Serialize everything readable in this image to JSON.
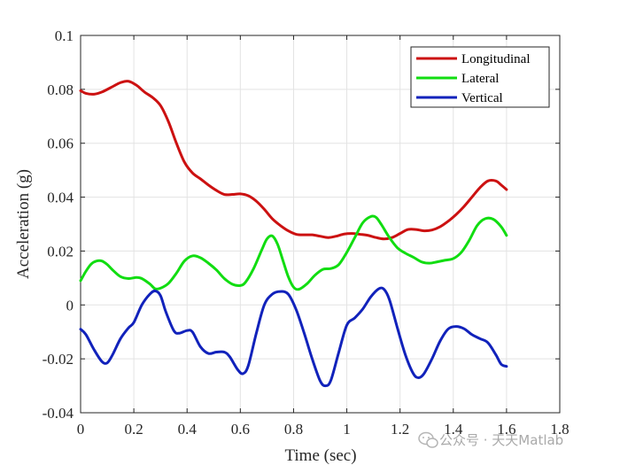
{
  "chart_data": {
    "type": "line",
    "xlabel": "Time (sec)",
    "ylabel": "Acceleration (g)",
    "xlim": [
      0,
      1.8
    ],
    "ylim": [
      -0.04,
      0.1
    ],
    "x_ticks": [
      0,
      0.2,
      0.4,
      0.6,
      0.8,
      1,
      1.2,
      1.4,
      1.6,
      1.8
    ],
    "x_tick_labels": [
      "0",
      "0.2",
      "0.4",
      "0.6",
      "0.8",
      "1",
      "1.2",
      "1.4",
      "1.6",
      "1.8"
    ],
    "y_ticks": [
      -0.04,
      -0.02,
      0,
      0.02,
      0.04,
      0.06,
      0.08,
      0.1
    ],
    "y_tick_labels": [
      "-0.04",
      "-0.02",
      "0",
      "0.02",
      "0.04",
      "0.06",
      "0.08",
      "0.1"
    ],
    "grid": true,
    "legend_position": "top-right",
    "series": [
      {
        "name": "Longitudinal",
        "color": "#cc1111",
        "points": [
          [
            0,
            0.0795
          ],
          [
            0.02,
            0.0785
          ],
          [
            0.05,
            0.0782
          ],
          [
            0.08,
            0.079
          ],
          [
            0.12,
            0.081
          ],
          [
            0.15,
            0.0825
          ],
          [
            0.18,
            0.083
          ],
          [
            0.21,
            0.0815
          ],
          [
            0.24,
            0.079
          ],
          [
            0.27,
            0.077
          ],
          [
            0.3,
            0.074
          ],
          [
            0.33,
            0.068
          ],
          [
            0.36,
            0.06
          ],
          [
            0.39,
            0.053
          ],
          [
            0.42,
            0.049
          ],
          [
            0.45,
            0.0468
          ],
          [
            0.48,
            0.0445
          ],
          [
            0.51,
            0.0425
          ],
          [
            0.54,
            0.041
          ],
          [
            0.57,
            0.041
          ],
          [
            0.6,
            0.0412
          ],
          [
            0.63,
            0.0405
          ],
          [
            0.66,
            0.0385
          ],
          [
            0.69,
            0.0355
          ],
          [
            0.72,
            0.032
          ],
          [
            0.75,
            0.0295
          ],
          [
            0.78,
            0.0275
          ],
          [
            0.81,
            0.0262
          ],
          [
            0.84,
            0.026
          ],
          [
            0.87,
            0.026
          ],
          [
            0.9,
            0.0255
          ],
          [
            0.93,
            0.025
          ],
          [
            0.96,
            0.0255
          ],
          [
            0.99,
            0.0263
          ],
          [
            1.02,
            0.0265
          ],
          [
            1.05,
            0.0262
          ],
          [
            1.08,
            0.0258
          ],
          [
            1.11,
            0.025
          ],
          [
            1.14,
            0.0245
          ],
          [
            1.17,
            0.025
          ],
          [
            1.2,
            0.0265
          ],
          [
            1.23,
            0.028
          ],
          [
            1.26,
            0.028
          ],
          [
            1.29,
            0.0275
          ],
          [
            1.32,
            0.0278
          ],
          [
            1.35,
            0.029
          ],
          [
            1.38,
            0.031
          ],
          [
            1.41,
            0.0335
          ],
          [
            1.44,
            0.0365
          ],
          [
            1.47,
            0.04
          ],
          [
            1.5,
            0.0435
          ],
          [
            1.53,
            0.046
          ],
          [
            1.56,
            0.046
          ],
          [
            1.58,
            0.0445
          ],
          [
            1.6,
            0.0428
          ]
        ]
      },
      {
        "name": "Lateral",
        "color": "#11dd11",
        "points": [
          [
            0,
            0.009
          ],
          [
            0.02,
            0.0125
          ],
          [
            0.04,
            0.0152
          ],
          [
            0.06,
            0.0163
          ],
          [
            0.08,
            0.0163
          ],
          [
            0.1,
            0.015
          ],
          [
            0.12,
            0.013
          ],
          [
            0.15,
            0.0105
          ],
          [
            0.18,
            0.0098
          ],
          [
            0.21,
            0.0102
          ],
          [
            0.23,
            0.0098
          ],
          [
            0.26,
            0.0078
          ],
          [
            0.28,
            0.006
          ],
          [
            0.3,
            0.0062
          ],
          [
            0.33,
            0.008
          ],
          [
            0.36,
            0.0118
          ],
          [
            0.39,
            0.0163
          ],
          [
            0.42,
            0.0182
          ],
          [
            0.45,
            0.0175
          ],
          [
            0.48,
            0.0155
          ],
          [
            0.51,
            0.013
          ],
          [
            0.54,
            0.0098
          ],
          [
            0.57,
            0.0077
          ],
          [
            0.6,
            0.0072
          ],
          [
            0.62,
            0.0085
          ],
          [
            0.65,
            0.0135
          ],
          [
            0.68,
            0.0203
          ],
          [
            0.7,
            0.0245
          ],
          [
            0.72,
            0.0256
          ],
          [
            0.74,
            0.0225
          ],
          [
            0.76,
            0.0165
          ],
          [
            0.78,
            0.0105
          ],
          [
            0.8,
            0.0066
          ],
          [
            0.82,
            0.0058
          ],
          [
            0.85,
            0.0078
          ],
          [
            0.88,
            0.011
          ],
          [
            0.91,
            0.0132
          ],
          [
            0.94,
            0.0135
          ],
          [
            0.97,
            0.015
          ],
          [
            1,
            0.0195
          ],
          [
            1.03,
            0.025
          ],
          [
            1.06,
            0.0305
          ],
          [
            1.09,
            0.0328
          ],
          [
            1.11,
            0.0325
          ],
          [
            1.13,
            0.0298
          ],
          [
            1.16,
            0.025
          ],
          [
            1.19,
            0.0212
          ],
          [
            1.22,
            0.0192
          ],
          [
            1.25,
            0.0177
          ],
          [
            1.28,
            0.016
          ],
          [
            1.31,
            0.0155
          ],
          [
            1.34,
            0.016
          ],
          [
            1.37,
            0.0166
          ],
          [
            1.4,
            0.0172
          ],
          [
            1.43,
            0.0195
          ],
          [
            1.46,
            0.024
          ],
          [
            1.49,
            0.0295
          ],
          [
            1.52,
            0.032
          ],
          [
            1.55,
            0.0318
          ],
          [
            1.58,
            0.029
          ],
          [
            1.6,
            0.0258
          ]
        ]
      },
      {
        "name": "Vertical",
        "color": "#1122bb",
        "points": [
          [
            0,
            -0.009
          ],
          [
            0.02,
            -0.011
          ],
          [
            0.05,
            -0.0165
          ],
          [
            0.08,
            -0.021
          ],
          [
            0.1,
            -0.0215
          ],
          [
            0.12,
            -0.0185
          ],
          [
            0.15,
            -0.0125
          ],
          [
            0.18,
            -0.0085
          ],
          [
            0.2,
            -0.0065
          ],
          [
            0.23,
            0
          ],
          [
            0.26,
            0.004
          ],
          [
            0.28,
            0.0052
          ],
          [
            0.3,
            0.0035
          ],
          [
            0.32,
            -0.0025
          ],
          [
            0.35,
            -0.0095
          ],
          [
            0.37,
            -0.0105
          ],
          [
            0.4,
            -0.0095
          ],
          [
            0.42,
            -0.01
          ],
          [
            0.45,
            -0.0155
          ],
          [
            0.48,
            -0.018
          ],
          [
            0.51,
            -0.0175
          ],
          [
            0.54,
            -0.0175
          ],
          [
            0.56,
            -0.0192
          ],
          [
            0.59,
            -0.024
          ],
          [
            0.61,
            -0.0255
          ],
          [
            0.63,
            -0.0225
          ],
          [
            0.66,
            -0.0105
          ],
          [
            0.69,
            0
          ],
          [
            0.72,
            0.004
          ],
          [
            0.75,
            0.005
          ],
          [
            0.78,
            0.004
          ],
          [
            0.81,
            -0.0018
          ],
          [
            0.84,
            -0.0105
          ],
          [
            0.87,
            -0.02
          ],
          [
            0.9,
            -0.0282
          ],
          [
            0.92,
            -0.03
          ],
          [
            0.94,
            -0.028
          ],
          [
            0.97,
            -0.0175
          ],
          [
            1,
            -0.0075
          ],
          [
            1.03,
            -0.0048
          ],
          [
            1.06,
            -0.0015
          ],
          [
            1.09,
            0.003
          ],
          [
            1.12,
            0.006
          ],
          [
            1.14,
            0.0058
          ],
          [
            1.16,
            0.002
          ],
          [
            1.19,
            -0.0085
          ],
          [
            1.22,
            -0.0185
          ],
          [
            1.25,
            -0.0255
          ],
          [
            1.27,
            -0.027
          ],
          [
            1.29,
            -0.0255
          ],
          [
            1.32,
            -0.02
          ],
          [
            1.35,
            -0.0135
          ],
          [
            1.38,
            -0.009
          ],
          [
            1.41,
            -0.008
          ],
          [
            1.44,
            -0.0088
          ],
          [
            1.47,
            -0.011
          ],
          [
            1.5,
            -0.0125
          ],
          [
            1.53,
            -0.014
          ],
          [
            1.56,
            -0.0185
          ],
          [
            1.58,
            -0.022
          ],
          [
            1.6,
            -0.0228
          ]
        ]
      }
    ]
  },
  "watermark": {
    "text": "公众号 · 天天Matlab",
    "icon": "wechat-icon"
  }
}
